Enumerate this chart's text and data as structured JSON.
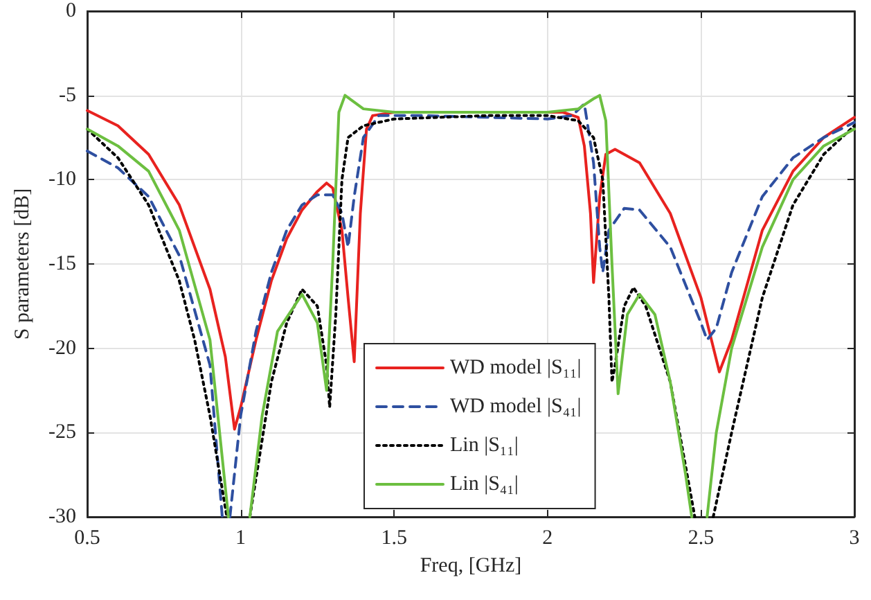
{
  "chart_data": {
    "type": "line",
    "xlabel": "Freq, [GHz]",
    "ylabel": "S parameters [dB]",
    "xlim": [
      0.5,
      3
    ],
    "xticks": [
      0.5,
      1,
      1.5,
      2,
      2.5,
      3
    ],
    "ylim": [
      -30,
      0
    ],
    "yticks": [
      -30,
      -25,
      -20,
      -15,
      -10,
      -5,
      0
    ],
    "grid": true,
    "legend": "bottom",
    "marker": "none",
    "series": [
      {
        "name": "WD model |S₁₁|",
        "color": "#e8221f",
        "line_style": "solid",
        "x": [
          0.5,
          0.6,
          0.7,
          0.8,
          0.9,
          0.95,
          0.98,
          1.0,
          1.05,
          1.1,
          1.15,
          1.2,
          1.25,
          1.28,
          1.3,
          1.33,
          1.35,
          1.37,
          1.39,
          1.41,
          1.43,
          1.5,
          1.7,
          1.9,
          2.05,
          2.1,
          2.12,
          2.14,
          2.15,
          2.17,
          2.19,
          2.22,
          2.3,
          2.4,
          2.5,
          2.56,
          2.6,
          2.7,
          2.8,
          2.9,
          3.0
        ],
        "values": [
          -5.9,
          -6.8,
          -8.5,
          -11.5,
          -16.5,
          -20.5,
          -24.8,
          -23.5,
          -19.5,
          -16,
          -13.5,
          -11.8,
          -10.7,
          -10.2,
          -10.5,
          -13,
          -17,
          -20.8,
          -12,
          -7,
          -6.2,
          -6,
          -6,
          -6,
          -6,
          -6.3,
          -8,
          -12,
          -16.1,
          -11,
          -8.5,
          -8.2,
          -9,
          -12,
          -17,
          -21.4,
          -19.5,
          -13,
          -9.5,
          -7.5,
          -6.3
        ]
      },
      {
        "name": "WD model |S₄₁|",
        "color": "#2e4fa0",
        "line_style": "dashed",
        "x": [
          0.5,
          0.6,
          0.7,
          0.8,
          0.9,
          0.94,
          0.95,
          0.965,
          1.0,
          1.05,
          1.1,
          1.15,
          1.2,
          1.25,
          1.3,
          1.33,
          1.35,
          1.37,
          1.4,
          1.45,
          1.6,
          1.8,
          2.0,
          2.08,
          2.12,
          2.15,
          2.17,
          2.18,
          2.2,
          2.25,
          2.3,
          2.4,
          2.5,
          2.52,
          2.55,
          2.6,
          2.7,
          2.8,
          2.9,
          3.0
        ],
        "values": [
          -8.3,
          -9.3,
          -11,
          -14.5,
          -21,
          -30,
          null,
          -30,
          -24,
          -19,
          -15.5,
          -13,
          -11.5,
          -10.9,
          -10.9,
          -12,
          -14,
          -11,
          -7.5,
          -6.2,
          -6.2,
          -6.3,
          -6.4,
          -6.2,
          -5.5,
          -9,
          -14,
          -15.5,
          -13,
          -11.7,
          -11.8,
          -14,
          -18.5,
          -19.5,
          -18.8,
          -15.5,
          -11,
          -8.7,
          -7.5,
          -6.6
        ]
      },
      {
        "name": "Lin |S₁₁|",
        "color": "#000000",
        "line_style": "dotted",
        "x": [
          0.5,
          0.6,
          0.7,
          0.8,
          0.85,
          0.9,
          0.955,
          0.99,
          1.03,
          1.1,
          1.15,
          1.2,
          1.25,
          1.28,
          1.29,
          1.31,
          1.33,
          1.35,
          1.4,
          1.5,
          1.8,
          2.0,
          2.1,
          2.15,
          2.18,
          2.2,
          2.21,
          2.22,
          2.25,
          2.28,
          2.32,
          2.4,
          2.45,
          2.48,
          2.51,
          2.54,
          2.6,
          2.7,
          2.8,
          2.9,
          3.0
        ],
        "values": [
          -7,
          -8.7,
          -11.5,
          -16,
          -19.5,
          -24,
          -30,
          null,
          -30,
          -22,
          -18.5,
          -16.5,
          -17.5,
          -21,
          -23.5,
          -18,
          -10,
          -7.5,
          -6.8,
          -6.4,
          -6.2,
          -6.2,
          -6.5,
          -7.5,
          -10,
          -17,
          -22,
          -21,
          -17.5,
          -16.4,
          -17.5,
          -22,
          -27,
          -30,
          null,
          -30,
          -25,
          -17,
          -11.5,
          -8.5,
          -6.8
        ]
      },
      {
        "name": "Lin |S₄₁|",
        "color": "#6cbf40",
        "line_style": "solid",
        "x": [
          0.5,
          0.6,
          0.7,
          0.8,
          0.9,
          0.96,
          0.995,
          1.03,
          1.07,
          1.12,
          1.2,
          1.25,
          1.28,
          1.3,
          1.32,
          1.34,
          1.4,
          1.5,
          2.0,
          2.1,
          2.15,
          2.17,
          2.19,
          2.21,
          2.23,
          2.26,
          2.3,
          2.35,
          2.4,
          2.45,
          2.47,
          2.495,
          2.52,
          2.55,
          2.6,
          2.7,
          2.8,
          2.9,
          3.0
        ],
        "values": [
          -7,
          -8,
          -9.5,
          -13,
          -19.5,
          -30,
          null,
          -30,
          -24,
          -19,
          -16.8,
          -18.5,
          -22.5,
          -15,
          -6,
          -5,
          -5.8,
          -6,
          -6,
          -5.8,
          -5.2,
          -5,
          -6.5,
          -15,
          -22.7,
          -18,
          -16.8,
          -18,
          -22,
          -27.5,
          -30,
          null,
          -30,
          -25,
          -20,
          -14,
          -10,
          -8,
          -7
        ]
      }
    ]
  }
}
